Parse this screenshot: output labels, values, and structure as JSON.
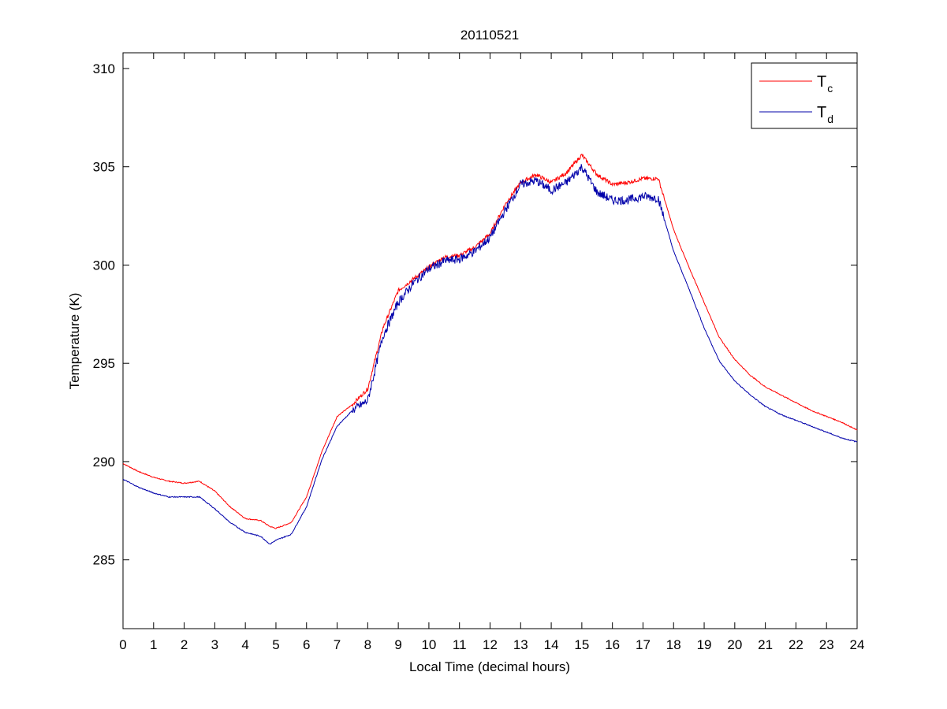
{
  "chart_data": {
    "type": "line",
    "title": "20110521",
    "xlabel": "Local Time (decimal hours)",
    "ylabel": "Temperature (K)",
    "xlim": [
      0,
      24
    ],
    "ylim": [
      281.5,
      310.8
    ],
    "xticks": [
      "0",
      "1",
      "2",
      "3",
      "4",
      "5",
      "6",
      "7",
      "8",
      "9",
      "10",
      "11",
      "12",
      "13",
      "14",
      "15",
      "16",
      "17",
      "18",
      "19",
      "20",
      "21",
      "22",
      "23",
      "24"
    ],
    "yticks": [
      "285",
      "290",
      "295",
      "300",
      "305",
      "310"
    ],
    "x_tick_values": [
      0,
      1,
      2,
      3,
      4,
      5,
      6,
      7,
      8,
      9,
      10,
      11,
      12,
      13,
      14,
      15,
      16,
      17,
      18,
      19,
      20,
      21,
      22,
      23,
      24
    ],
    "y_tick_values": [
      285,
      290,
      295,
      300,
      305,
      310
    ],
    "grid": false,
    "legend_position": "top-right",
    "series": [
      {
        "name": "T",
        "subscript": "c",
        "color": "#ff0000",
        "x": [
          0,
          0.5,
          1,
          1.5,
          2,
          2.5,
          3,
          3.5,
          4,
          4.5,
          4.8,
          5,
          5.5,
          6,
          6.5,
          7,
          7.5,
          8,
          8.5,
          9,
          9.5,
          10,
          10.5,
          11,
          11.5,
          12,
          12.5,
          13,
          13.5,
          14,
          14.5,
          15,
          15.5,
          16,
          16.5,
          17,
          17.5,
          18,
          18.5,
          19,
          19.5,
          20,
          20.5,
          21,
          21.5,
          22,
          22.5,
          23,
          23.5,
          24
        ],
        "y": [
          289.9,
          289.5,
          289.2,
          289.0,
          288.9,
          289.0,
          288.5,
          287.7,
          287.1,
          287.0,
          286.7,
          286.6,
          286.9,
          288.2,
          290.5,
          292.3,
          292.9,
          293.7,
          296.8,
          298.7,
          299.3,
          299.9,
          300.4,
          300.5,
          300.9,
          301.6,
          303.1,
          304.2,
          304.6,
          304.2,
          304.7,
          305.6,
          304.6,
          304.1,
          304.2,
          304.4,
          304.4,
          301.8,
          299.9,
          298.1,
          296.3,
          295.2,
          294.4,
          293.8,
          293.4,
          293.0,
          292.6,
          292.3,
          292.0,
          291.6
        ]
      },
      {
        "name": "T",
        "subscript": "d",
        "color": "#0000aa",
        "x": [
          0,
          0.5,
          1,
          1.5,
          2,
          2.5,
          3,
          3.5,
          4,
          4.5,
          4.8,
          5,
          5.5,
          6,
          6.5,
          7,
          7.5,
          8,
          8.5,
          9,
          9.5,
          10,
          10.5,
          11,
          11.5,
          12,
          12.5,
          13,
          13.5,
          14,
          14.5,
          15,
          15.5,
          16,
          16.5,
          17,
          17.5,
          18,
          18.5,
          19,
          19.5,
          20,
          20.5,
          21,
          21.5,
          22,
          22.5,
          23,
          23.5,
          24
        ],
        "y": [
          289.1,
          288.7,
          288.4,
          288.2,
          288.2,
          288.2,
          287.6,
          286.9,
          286.4,
          286.2,
          285.8,
          286.0,
          286.3,
          287.7,
          290.1,
          291.8,
          292.6,
          293.1,
          296.4,
          298.1,
          299.1,
          299.8,
          300.2,
          300.3,
          300.7,
          301.4,
          302.8,
          304.1,
          304.3,
          303.8,
          304.2,
          305.0,
          303.7,
          303.3,
          303.3,
          303.5,
          303.4,
          300.7,
          298.8,
          296.8,
          295.1,
          294.1,
          293.4,
          292.8,
          292.4,
          292.1,
          291.8,
          291.5,
          291.2,
          291.0
        ]
      }
    ]
  }
}
